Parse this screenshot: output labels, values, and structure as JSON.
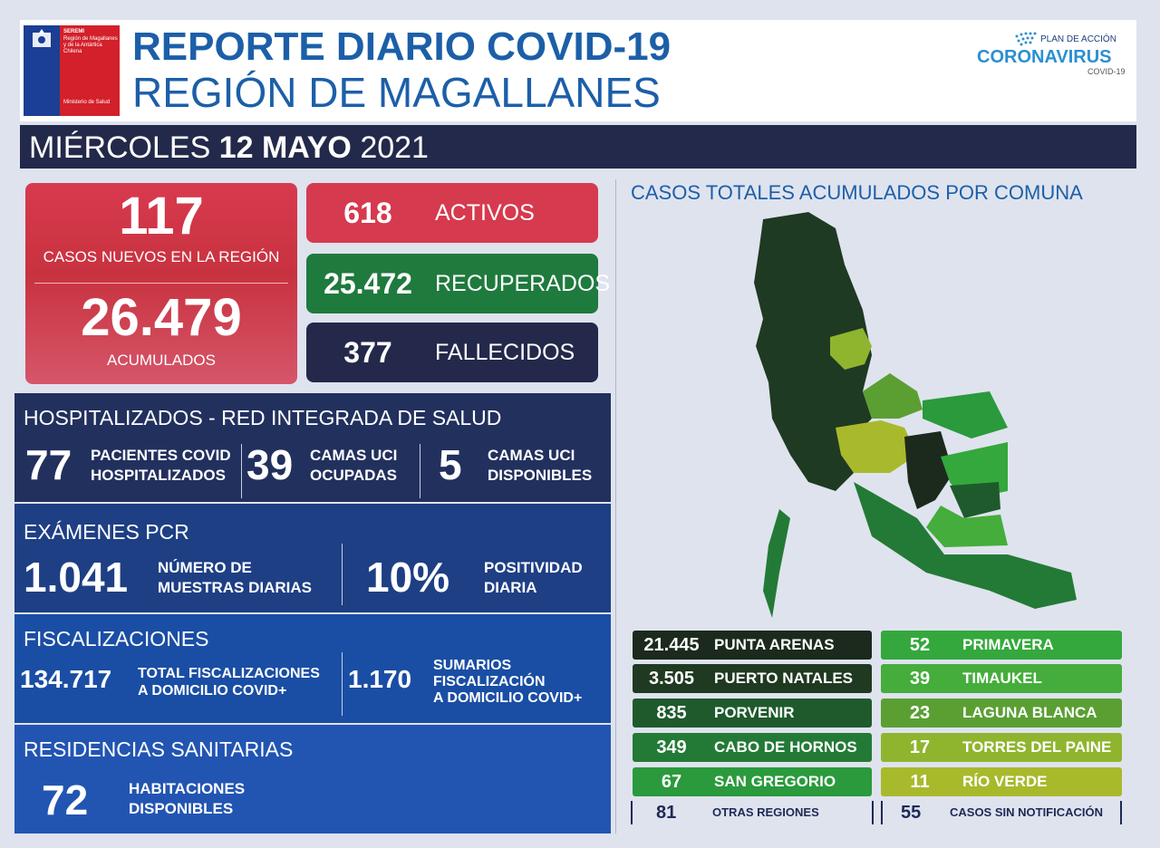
{
  "header": {
    "logo_lines": [
      "SEREMI",
      "Región de Magallanes",
      "y de la Antártica",
      "Chilena"
    ],
    "logo_ministry": "Ministerio de Salud",
    "title_line1": "REPORTE DIARIO COVID-19",
    "title_line2": "REGIÓN DE MAGALLANES",
    "plan_top": "PLAN DE ACCIÓN",
    "plan_main": "CORONAVIRUS",
    "plan_sub": "COVID-19"
  },
  "date": {
    "weekday": "MIÉRCOLES",
    "daymonth": "12 MAYO",
    "year": "2021"
  },
  "summary": {
    "new_cases": "117",
    "new_cases_label": "CASOS NUEVOS EN LA REGIÓN",
    "accumulated": "26.479",
    "accumulated_label": "ACUMULADOS",
    "active": "618",
    "active_label": "ACTIVOS",
    "recovered": "25.472",
    "recovered_label": "RECUPERADOS",
    "deceased": "377",
    "deceased_label": "FALLECIDOS"
  },
  "hospital": {
    "title": "HOSPITALIZADOS - RED INTEGRADA DE SALUD",
    "items": [
      {
        "num": "77",
        "line1": "PACIENTES COVID",
        "line2": "HOSPITALIZADOS"
      },
      {
        "num": "39",
        "line1": "CAMAS UCI",
        "line2": "OCUPADAS"
      },
      {
        "num": "5",
        "line1": "CAMAS UCI",
        "line2": "DISPONIBLES"
      }
    ]
  },
  "pcr": {
    "title": "EXÁMENES PCR",
    "items": [
      {
        "num": "1.041",
        "line1": "NÚMERO DE",
        "line2": "MUESTRAS DIARIAS"
      },
      {
        "num": "10%",
        "line1": "POSITIVIDAD",
        "line2": "DIARIA"
      }
    ]
  },
  "fisc": {
    "title": "FISCALIZACIONES",
    "items": [
      {
        "num": "134.717",
        "line1": "TOTAL FISCALIZACIONES",
        "line2": "A DOMICILIO COVID+"
      },
      {
        "num": "1.170",
        "line1": "SUMARIOS",
        "line2": "FISCALIZACIÓN",
        "line3": "A DOMICILIO COVID+"
      }
    ]
  },
  "residencias": {
    "title": "RESIDENCIAS SANITARIAS",
    "num": "72",
    "line1": "HABITACIONES",
    "line2": "DISPONIBLES"
  },
  "comunas": {
    "title": "CASOS TOTALES ACUMULADOS POR COMUNA",
    "left": [
      {
        "num": "21.445",
        "name": "PUNTA ARENAS",
        "color": "#1b2a1c"
      },
      {
        "num": "3.505",
        "name": "PUERTO NATALES",
        "color": "#203a22"
      },
      {
        "num": "835",
        "name": "PORVENIR",
        "color": "#1f5a2c"
      },
      {
        "num": "349",
        "name": "CABO DE HORNOS",
        "color": "#237a36"
      },
      {
        "num": "67",
        "name": "SAN GREGORIO",
        "color": "#2a9a3c"
      }
    ],
    "right": [
      {
        "num": "52",
        "name": "PRIMAVERA",
        "color": "#34a83c"
      },
      {
        "num": "39",
        "name": "TIMAUKEL",
        "color": "#45ad3b"
      },
      {
        "num": "23",
        "name": "LAGUNA BLANCA",
        "color": "#5b9f33"
      },
      {
        "num": "17",
        "name": "TORRES DEL PAINE",
        "color": "#8fb52e"
      },
      {
        "num": "11",
        "name": "RÍO VERDE",
        "color": "#a9b92c"
      }
    ],
    "otras_num": "81",
    "otras_label": "OTRAS REGIONES",
    "sin_num": "55",
    "sin_label": "CASOS SIN NOTIFICACIÓN"
  }
}
